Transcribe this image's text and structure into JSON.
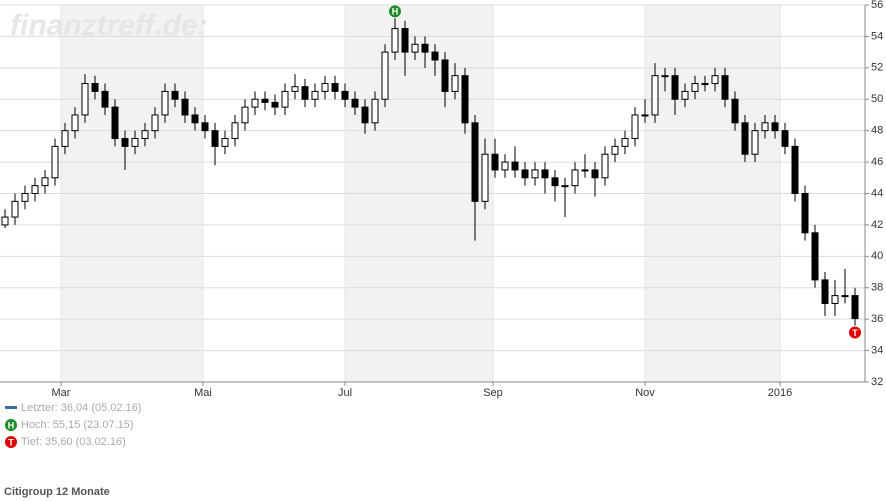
{
  "chart_data": {
    "type": "candlestick",
    "watermark": "finanztreff.de:",
    "title": "Citigroup 12 Monate",
    "xlim": [
      -0.5,
      86
    ],
    "xticks": [
      {
        "value": 5.6,
        "label": "Mar"
      },
      {
        "value": 19.8,
        "label": "Mai"
      },
      {
        "value": 34,
        "label": "Jul"
      },
      {
        "value": 48.8,
        "label": "Sep"
      },
      {
        "value": 64,
        "label": "Nov"
      },
      {
        "value": 77.5,
        "label": "2016"
      }
    ],
    "ylim": [
      32,
      56
    ],
    "yticks": [
      32,
      34,
      36,
      38,
      40,
      42,
      44,
      46,
      48,
      50,
      52,
      54,
      56
    ],
    "grid": true,
    "alternate_shading": true,
    "up_color": "#ffffff",
    "down_color": "#000000",
    "series": [
      {
        "open": [
          42,
          42.5,
          43.5,
          44,
          44.5,
          45,
          47,
          48,
          49,
          51,
          50.5,
          49.5,
          47.5,
          47,
          47.5,
          48,
          49,
          50.5,
          50,
          49,
          48.5,
          48,
          47,
          47.5,
          48.5,
          49.5,
          50,
          49.8,
          49.5,
          50.5,
          50.8,
          50,
          50.5,
          51,
          50.5,
          50,
          49.5,
          48.5,
          50,
          53,
          54.5,
          53,
          53.5,
          53,
          52.5,
          50.5,
          51.5,
          48.5,
          43.5,
          46.5,
          45.5,
          46,
          45.5,
          45,
          45.5,
          45,
          44.5,
          44.5,
          45.5,
          45.5,
          45,
          46.5,
          47,
          47.5,
          49,
          49,
          51.5,
          51.5,
          50,
          50.5,
          51,
          51,
          51.5,
          50,
          48.5,
          46.5,
          48,
          48.5,
          48,
          47,
          44,
          41.5,
          38.5,
          37,
          37.5,
          37.5
        ],
        "high": [
          43,
          44,
          44.5,
          45,
          45.5,
          47.5,
          48.5,
          49.5,
          51.6,
          51.5,
          51,
          50,
          48,
          48,
          48.5,
          49.5,
          51,
          51,
          50.5,
          49.5,
          49,
          48.5,
          48,
          49,
          50,
          50.5,
          50.5,
          50.3,
          51,
          51.6,
          51.3,
          51,
          51.5,
          51.5,
          51,
          50.5,
          50,
          50.5,
          53.5,
          55.15,
          55,
          54,
          54,
          53.5,
          53,
          52.3,
          52,
          49,
          47.5,
          47.5,
          46.5,
          47,
          46,
          46,
          46,
          45.5,
          45,
          46,
          46.5,
          46,
          47,
          47.5,
          48,
          49.5,
          50,
          52.3,
          52,
          52,
          51,
          51.5,
          51.5,
          52,
          52,
          50.5,
          49,
          48.5,
          49,
          49,
          48.5,
          47.5,
          44.5,
          42,
          39,
          38.5,
          39.2,
          38
        ],
        "low": [
          41.8,
          42,
          43,
          43.5,
          44,
          44.5,
          46.5,
          47.5,
          48.5,
          50,
          49,
          47,
          45.5,
          46.5,
          47,
          47.5,
          48.5,
          49.5,
          48.5,
          48,
          47.5,
          45.8,
          46.5,
          47,
          48,
          49,
          49.3,
          49,
          49,
          50,
          49.5,
          49.5,
          50,
          50,
          49.5,
          49,
          47.8,
          48,
          49.5,
          52.5,
          51.5,
          52.5,
          52,
          51.5,
          49.5,
          50,
          47.8,
          41,
          43,
          45,
          45,
          45,
          44.5,
          44.5,
          44,
          43.5,
          42.5,
          44,
          45,
          43.8,
          44.5,
          46,
          46.5,
          47,
          48.5,
          48.5,
          50.5,
          49,
          49.5,
          50,
          50.5,
          50.5,
          49.5,
          48,
          46,
          46,
          47.5,
          47.5,
          46.5,
          43.5,
          41,
          38,
          36.2,
          36.2,
          37,
          35.6
        ],
        "close": [
          42.5,
          43.5,
          44,
          44.5,
          45,
          47,
          48,
          49,
          51,
          50.5,
          49.5,
          47.5,
          47,
          47.5,
          48,
          49,
          50.5,
          50,
          49,
          48.5,
          48,
          47,
          47.5,
          48.5,
          49.5,
          50,
          49.8,
          49.5,
          50.5,
          50.8,
          50,
          50.5,
          51,
          50.5,
          50,
          49.5,
          48.5,
          50,
          53,
          54.5,
          53,
          53.5,
          53,
          52.5,
          50.5,
          51.5,
          48.5,
          43.5,
          46.5,
          45.5,
          46,
          45.5,
          45,
          45.5,
          45,
          44.5,
          44.5,
          45.5,
          45.5,
          45,
          46.5,
          47,
          47.5,
          49,
          49,
          51.5,
          51.5,
          50,
          50.5,
          51,
          51,
          51.5,
          50,
          48.5,
          46.5,
          48,
          48.5,
          48,
          47,
          44,
          41.5,
          38.5,
          37,
          37.5,
          37.5,
          36.04
        ]
      }
    ],
    "info": [
      {
        "label": "Letzter: 36,04 (05.02.16)",
        "symbol": "line",
        "color": "#3a6ea5"
      },
      {
        "label": "Hoch: 55,15 (23.07.15)",
        "symbol": "H",
        "color": "#1e8c28"
      },
      {
        "label": "Tief: 35,60 (03.02.16)",
        "symbol": "T",
        "color": "#e00000"
      }
    ]
  }
}
